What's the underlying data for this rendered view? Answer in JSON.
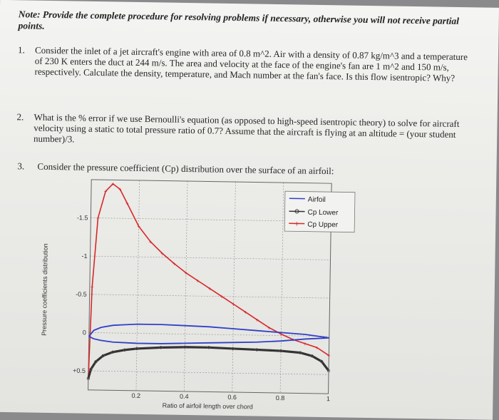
{
  "note": "Note: Provide the complete procedure for resolving problems if necessary, otherwise you will not receive partial points.",
  "questions": [
    {
      "num": "1.",
      "text": "Consider the inlet of a jet aircraft's engine with area of 0.8 m^2. Air with a density of 0.87 kg/m^3 and a temperature of 230 K enters the duct at 244 m/s. The area and velocity at the face of the engine's fan are 1 m^2 and 150 m/s, respectively. Calculate the density, temperature, and Mach number at the fan's face. Is this flow isentropic? Why?"
    },
    {
      "num": "2.",
      "text": "What is the % error if we use Bernoulli's equation (as opposed to high-speed isentropic theory) to solve for aircraft velocity using a static to total pressure ratio of 0.7? Assume that the aircraft is flying at an altitude = (your student number)/3."
    },
    {
      "num": "3.",
      "text": "Consider the pressure coefficient (Cp) distribution over the surface of an airfoil:"
    }
  ],
  "chart_data": {
    "type": "line",
    "xlabel": "Ratio of airfoil length over chord",
    "ylabel": "Pressure coefficients distribution",
    "x_ticks": [
      "0.2",
      "0.4",
      "0.6",
      "0.8",
      "1"
    ],
    "y_ticks": [
      "-1.5",
      "-1",
      "-0.5",
      "0",
      "+0.5"
    ],
    "xlim": [
      0,
      1
    ],
    "ylim_inverted": [
      0.75,
      -2.0
    ],
    "legend_position": "top-right",
    "legend": [
      "Airfoil",
      "Cp Lower",
      "Cp Upper"
    ],
    "colors": {
      "airfoil": "#3040c8",
      "lower": "#333333",
      "upper": "#d62828"
    },
    "series": [
      {
        "name": "Cp Upper",
        "x": [
          0.0,
          0.01,
          0.03,
          0.06,
          0.09,
          0.12,
          0.15,
          0.2,
          0.25,
          0.3,
          0.35,
          0.4,
          0.45,
          0.5,
          0.55,
          0.6,
          0.65,
          0.7,
          0.75,
          0.8,
          0.85,
          0.9,
          0.95,
          1.0
        ],
        "y": [
          0.6,
          -0.6,
          -1.5,
          -1.85,
          -1.95,
          -1.88,
          -1.7,
          -1.4,
          -1.2,
          -1.05,
          -0.92,
          -0.8,
          -0.7,
          -0.6,
          -0.5,
          -0.4,
          -0.3,
          -0.2,
          -0.1,
          -0.02,
          0.05,
          0.1,
          0.15,
          0.25
        ]
      },
      {
        "name": "Cp Lower",
        "x": [
          0.0,
          0.01,
          0.03,
          0.06,
          0.1,
          0.15,
          0.2,
          0.3,
          0.4,
          0.5,
          0.6,
          0.7,
          0.8,
          0.88,
          0.93,
          0.97,
          1.0
        ],
        "y": [
          0.6,
          0.48,
          0.38,
          0.3,
          0.25,
          0.22,
          0.2,
          0.18,
          0.17,
          0.17,
          0.18,
          0.19,
          0.2,
          0.22,
          0.26,
          0.33,
          0.45
        ]
      },
      {
        "name": "Airfoil",
        "x": [
          0.0,
          0.02,
          0.05,
          0.1,
          0.15,
          0.2,
          0.3,
          0.4,
          0.5,
          0.6,
          0.7,
          0.8,
          0.9,
          0.95,
          1.0,
          0.95,
          0.9,
          0.8,
          0.7,
          0.6,
          0.5,
          0.4,
          0.3,
          0.2,
          0.1,
          0.05,
          0.02,
          0.0
        ],
        "y": [
          0.05,
          -0.03,
          -0.07,
          -0.1,
          -0.11,
          -0.12,
          -0.12,
          -0.11,
          -0.1,
          -0.08,
          -0.06,
          -0.04,
          -0.02,
          0.0,
          0.02,
          0.03,
          0.04,
          0.07,
          0.09,
          0.1,
          0.11,
          0.12,
          0.13,
          0.13,
          0.12,
          0.1,
          0.08,
          0.05
        ]
      }
    ]
  }
}
